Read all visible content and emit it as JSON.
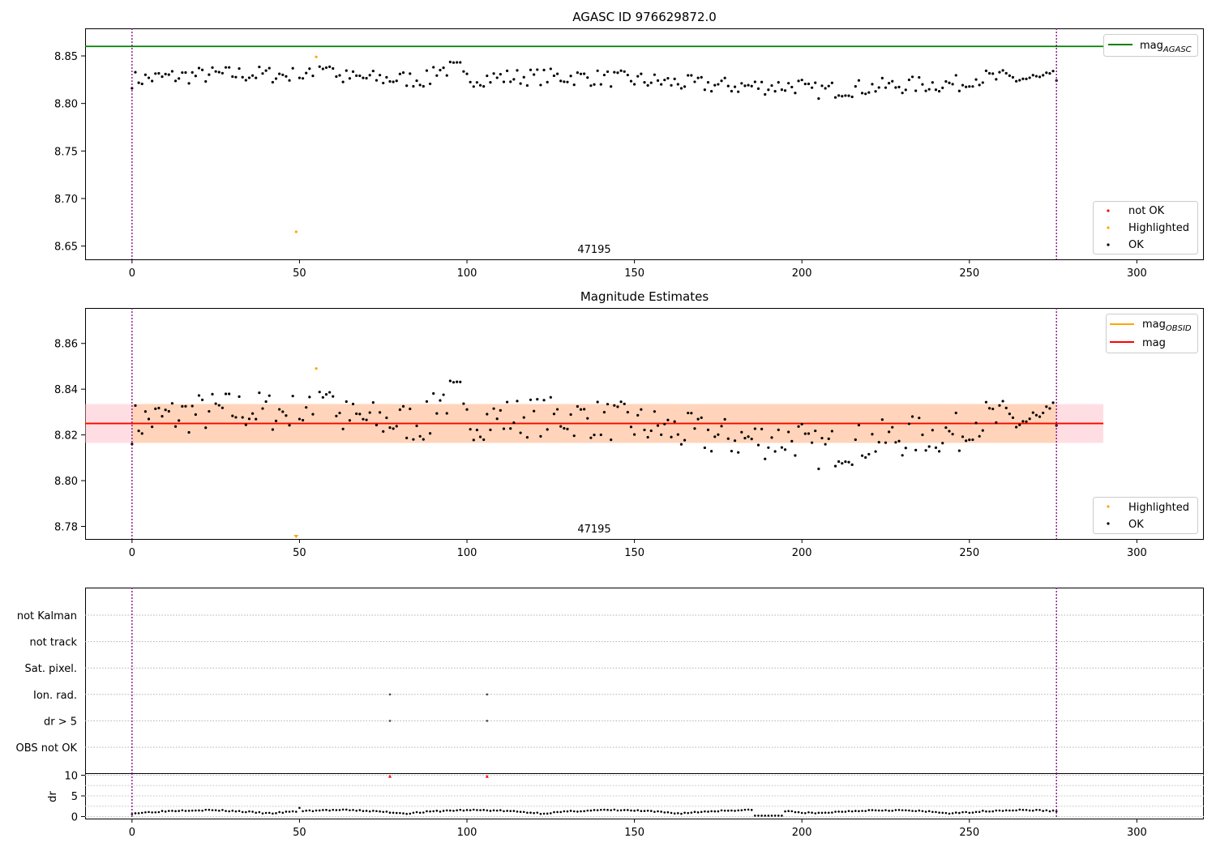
{
  "chart_data": [
    {
      "type": "scatter",
      "title": "AGASC ID 976629872.0",
      "xlim": [
        -14,
        320
      ],
      "ylim": [
        8.636,
        8.879
      ],
      "xticks": [
        0,
        50,
        100,
        150,
        200,
        250,
        300
      ],
      "xtick_labels": [
        "0",
        "50",
        "100",
        "150",
        "200",
        "250",
        "300"
      ],
      "yticks": [
        8.65,
        8.7,
        8.75,
        8.8,
        8.85
      ],
      "ytick_labels": [
        "8.65",
        "8.70",
        "8.75",
        "8.80",
        "8.85"
      ],
      "vlines": [
        0,
        276
      ],
      "hline": {
        "value": 8.86,
        "color": "#008000"
      },
      "annotation": {
        "text": "47195",
        "x": 138
      },
      "highlighted_points": [
        [
          49,
          8.665
        ],
        [
          55,
          8.849
        ]
      ],
      "legend_lines": [
        {
          "label": "mag",
          "sub": "AGASC",
          "color": "#008000"
        }
      ],
      "legend_markers": [
        {
          "label": "not OK",
          "color": "#ff0000"
        },
        {
          "label": "Highlighted",
          "color": "#ffa500"
        },
        {
          "label": "OK",
          "color": "#000000"
        }
      ]
    },
    {
      "type": "scatter",
      "title": "Magnitude Estimates",
      "xlim": [
        -14,
        320
      ],
      "ylim": [
        8.7745,
        8.8755
      ],
      "xticks": [
        0,
        50,
        100,
        150,
        200,
        250,
        300
      ],
      "xtick_labels": [
        "0",
        "50",
        "100",
        "150",
        "200",
        "250",
        "300"
      ],
      "yticks": [
        8.78,
        8.8,
        8.82,
        8.84,
        8.86
      ],
      "ytick_labels": [
        "8.78",
        "8.80",
        "8.82",
        "8.84",
        "8.86"
      ],
      "vlines": [
        0,
        276
      ],
      "mag_line": {
        "value": 8.825,
        "x_range": [
          -14,
          290
        ],
        "color": "#ff0000"
      },
      "mag_band": {
        "lower": 8.8165,
        "upper": 8.8335,
        "x_range": [
          -14,
          290
        ]
      },
      "highlighted_points": [
        [
          55,
          8.849
        ]
      ],
      "clipped_point": {
        "x": 49,
        "direction": "below"
      },
      "annotation": {
        "text": "47195",
        "x": 138
      },
      "legend_lines": [
        {
          "label": "mag",
          "sub": "OBSID",
          "color": "#ffa500"
        },
        {
          "label": "mag",
          "sub": "",
          "color": "#ff0000"
        }
      ],
      "legend_markers": [
        {
          "label": "Highlighted",
          "color": "#ffa500"
        },
        {
          "label": "OK",
          "color": "#000000"
        }
      ]
    },
    {
      "type": "scatter",
      "title": "",
      "xlim": [
        -14,
        320
      ],
      "xticks": [
        0,
        50,
        100,
        150,
        200,
        250,
        300
      ],
      "xtick_labels": [
        "0",
        "50",
        "100",
        "150",
        "200",
        "250",
        "300"
      ],
      "flag_categories": [
        "not Kalman",
        "not track",
        "Sat. pixel.",
        "Ion. rad.",
        "dr > 5",
        "OBS not OK"
      ],
      "flag_points": [
        {
          "category": "Ion. rad.",
          "x": 77
        },
        {
          "category": "Ion. rad.",
          "x": 106
        },
        {
          "category": "dr > 5",
          "x": 77
        },
        {
          "category": "dr > 5",
          "x": 106
        }
      ],
      "vlines": [
        0,
        276
      ]
    },
    {
      "type": "scatter",
      "title": "",
      "ylabel": "dr",
      "xlim": [
        -14,
        320
      ],
      "ylim": [
        -0.5,
        10.5
      ],
      "yticks": [
        0,
        5,
        10
      ],
      "ytick_labels": [
        "0",
        "5",
        "10"
      ],
      "dr_outliers": [
        [
          77,
          9.8
        ],
        [
          106,
          9.8
        ]
      ],
      "vlines": [
        0,
        276
      ]
    }
  ]
}
